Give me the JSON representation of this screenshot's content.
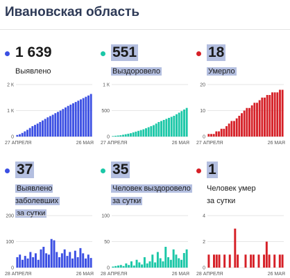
{
  "page": {
    "title": "Ивановская область"
  },
  "cards": [
    {
      "value": "1 639",
      "label_lines": [
        "Выявлено"
      ],
      "highlight_value": false,
      "highlight_label": false,
      "color": "#3b4fe3"
    },
    {
      "value": "551",
      "label_lines": [
        "Выздоровело"
      ],
      "highlight_value": true,
      "highlight_label": true,
      "color": "#1bc7a7"
    },
    {
      "value": "18",
      "label_lines": [
        "Умерло"
      ],
      "highlight_value": true,
      "highlight_label": true,
      "color": "#d62027"
    },
    {
      "value": "37",
      "label_lines": [
        "Выявлено заболевших",
        "за сутки"
      ],
      "highlight_value": true,
      "highlight_label": true,
      "color": "#3b4fe3"
    },
    {
      "value": "35",
      "label_lines": [
        "Человек выздоровело",
        "за сутки"
      ],
      "highlight_value": true,
      "highlight_label": true,
      "color": "#1bc7a7"
    },
    {
      "value": "1",
      "label_lines": [
        "Человек умер",
        "за сутки"
      ],
      "highlight_value": true,
      "highlight_label": false,
      "color": "#d62027"
    }
  ],
  "chart_data": [
    {
      "type": "bar",
      "title": "",
      "xlabel": "",
      "ylabel": "",
      "x_start_label": "27 АПРЕЛЯ",
      "x_end_label": "26 МАЯ",
      "yticks": [
        "0",
        "1 К",
        "2 К"
      ],
      "ylim": [
        0,
        2000
      ],
      "color": "#3b4fe3",
      "values": [
        60,
        90,
        140,
        200,
        260,
        330,
        400,
        450,
        500,
        560,
        620,
        680,
        740,
        790,
        840,
        900,
        950,
        1000,
        1060,
        1120,
        1180,
        1230,
        1280,
        1330,
        1380,
        1430,
        1480,
        1530,
        1580,
        1639
      ]
    },
    {
      "type": "bar",
      "title": "",
      "xlabel": "",
      "ylabel": "",
      "x_start_label": "27 АПРЕЛЯ",
      "x_end_label": "26 МАЯ",
      "yticks": [
        "0",
        "500",
        "1 К"
      ],
      "ylim": [
        0,
        1000
      ],
      "color": "#1bc7a7",
      "values": [
        10,
        15,
        20,
        25,
        35,
        45,
        55,
        65,
        80,
        95,
        110,
        125,
        140,
        160,
        180,
        200,
        220,
        250,
        280,
        300,
        320,
        340,
        360,
        380,
        400,
        430,
        460,
        490,
        520,
        551
      ]
    },
    {
      "type": "bar",
      "title": "",
      "xlabel": "",
      "ylabel": "",
      "x_start_label": "27 АПРЕЛЯ",
      "x_end_label": "26 МАЯ",
      "yticks": [
        "0",
        "10",
        "20"
      ],
      "ylim": [
        0,
        20
      ],
      "color": "#d62027",
      "values": [
        1,
        1,
        1,
        2,
        2,
        3,
        3,
        4,
        5,
        6,
        6,
        7,
        8,
        9,
        10,
        11,
        11,
        12,
        13,
        13,
        14,
        15,
        15,
        16,
        16,
        17,
        17,
        17,
        18,
        18
      ]
    },
    {
      "type": "bar",
      "title": "",
      "xlabel": "",
      "ylabel": "",
      "x_start_label": "28 АПРЕЛЯ",
      "x_end_label": "26 МАЯ",
      "yticks": [
        "0",
        "100",
        "200"
      ],
      "ylim": [
        0,
        200
      ],
      "color": "#3b4fe3",
      "values": [
        40,
        50,
        30,
        45,
        35,
        60,
        40,
        55,
        30,
        70,
        80,
        55,
        50,
        110,
        105,
        60,
        40,
        55,
        70,
        45,
        60,
        35,
        65,
        40,
        75,
        55,
        35,
        50,
        37
      ]
    },
    {
      "type": "bar",
      "title": "",
      "xlabel": "",
      "ylabel": "",
      "x_start_label": "28 АПРЕЛЯ",
      "x_end_label": "26 МАЯ",
      "yticks": [
        "0",
        "50",
        "100"
      ],
      "ylim": [
        0,
        100
      ],
      "color": "#1bc7a7",
      "values": [
        2,
        3,
        4,
        5,
        3,
        8,
        5,
        12,
        4,
        15,
        10,
        6,
        20,
        8,
        12,
        25,
        10,
        30,
        18,
        12,
        40,
        20,
        15,
        35,
        25,
        18,
        15,
        28,
        35
      ]
    },
    {
      "type": "bar",
      "title": "",
      "xlabel": "",
      "ylabel": "",
      "x_start_label": "28 АПРЕЛЯ",
      "x_end_label": "26 МАЯ",
      "yticks": [
        "0",
        "2",
        "4"
      ],
      "ylim": [
        0,
        4
      ],
      "color": "#d62027",
      "values": [
        1,
        0,
        1,
        1,
        1,
        0,
        1,
        0,
        1,
        0,
        3,
        1,
        0,
        0,
        1,
        0,
        1,
        1,
        0,
        1,
        0,
        1,
        2,
        1,
        0,
        1,
        0,
        1,
        1
      ]
    }
  ]
}
